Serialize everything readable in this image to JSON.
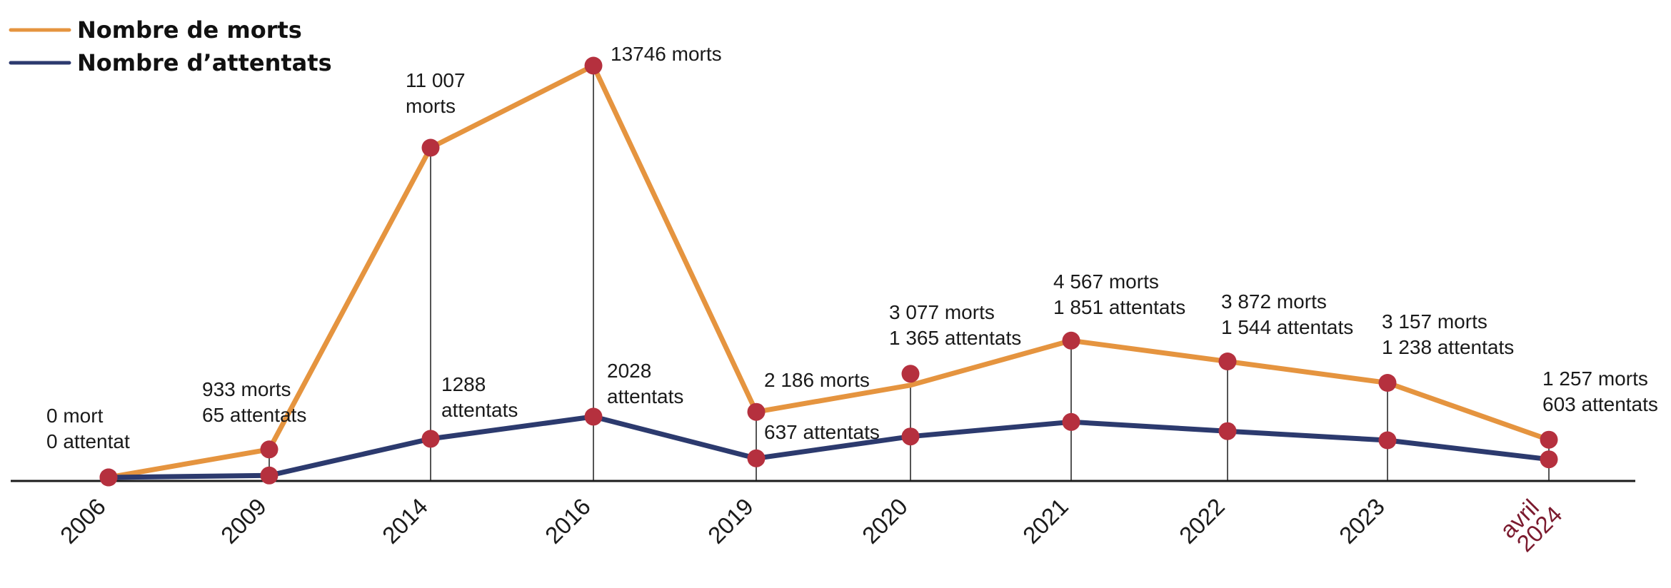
{
  "chart_data": {
    "type": "line",
    "title": "",
    "xlabel": "",
    "ylabel": "",
    "grid": false,
    "legend_position": "top-left",
    "categories": [
      "2006",
      "2009",
      "2014",
      "2016",
      "2019",
      "2020",
      "2021",
      "2022",
      "2023",
      "avril 2024"
    ],
    "category_lines": [
      [
        "2006"
      ],
      [
        "2009"
      ],
      [
        "2014"
      ],
      [
        "2016"
      ],
      [
        "2019"
      ],
      [
        "2020"
      ],
      [
        "2021"
      ],
      [
        "2022"
      ],
      [
        "2023"
      ],
      [
        "avril",
        "2024"
      ]
    ],
    "highlight_category": "avril 2024",
    "ylim": [
      0,
      14500
    ],
    "series": [
      {
        "name": "Nombre de morts",
        "color": "#e5943f",
        "values": [
          0,
          933,
          11007,
          13746,
          2186,
          3077,
          4567,
          3872,
          3157,
          1257
        ]
      },
      {
        "name": "Nombre d’attentats",
        "color": "#2c3a6e",
        "values": [
          0,
          65,
          1288,
          2028,
          637,
          1365,
          1851,
          1544,
          1238,
          603
        ]
      }
    ],
    "marker_color": "#b5303e",
    "highlight_color": "#7b1a2e",
    "annotations": [
      {
        "category": "2006",
        "lines": [
          "0 mort",
          "0 attentat"
        ]
      },
      {
        "category": "2009",
        "lines": [
          "933 morts",
          "65 attentats"
        ]
      },
      {
        "category": "2014",
        "lines": [
          "11 007",
          "morts"
        ]
      },
      {
        "category": "2014",
        "lines": [
          "1288",
          "attentats"
        ]
      },
      {
        "category": "2016",
        "lines": [
          "13746 morts"
        ]
      },
      {
        "category": "2016",
        "lines": [
          "2028",
          "attentats"
        ]
      },
      {
        "category": "2019",
        "lines": [
          "2 186 morts"
        ]
      },
      {
        "category": "2019",
        "lines": [
          "637 attentats"
        ]
      },
      {
        "category": "2020",
        "lines": [
          "3 077 morts",
          "1 365 attentats"
        ]
      },
      {
        "category": "2021",
        "lines": [
          "4 567 morts",
          "1 851 attentats"
        ]
      },
      {
        "category": "2022",
        "lines": [
          "3 872 morts",
          "1 544 attentats"
        ]
      },
      {
        "category": "2023",
        "lines": [
          "3 157 morts",
          "1 238 attentats"
        ]
      },
      {
        "category": "avril 2024",
        "lines": [
          "1 257 morts",
          "603 attentats"
        ]
      }
    ]
  }
}
